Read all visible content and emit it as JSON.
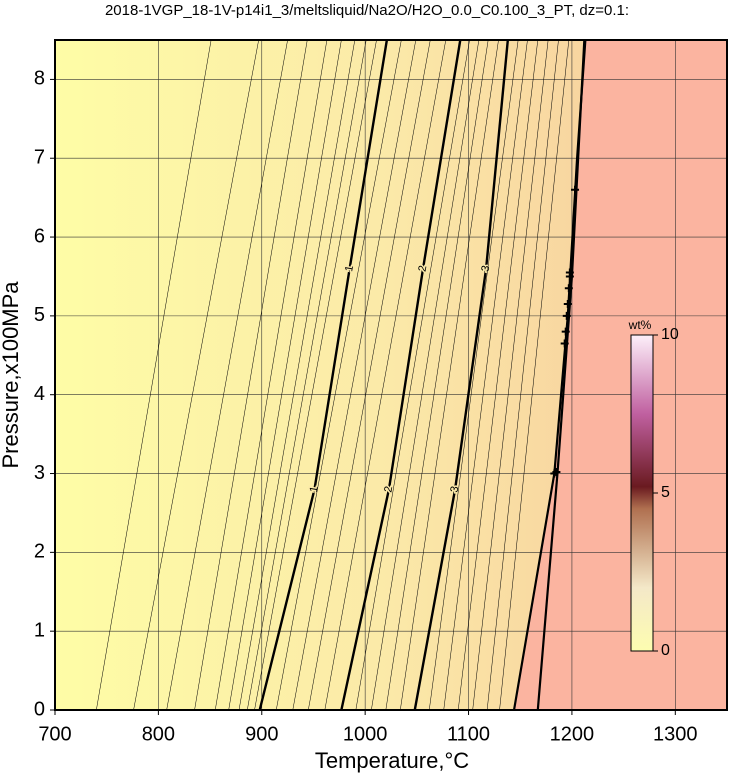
{
  "chart_data": {
    "type": "contour",
    "title": "2018-1VGP_18-1V-p14i1_3/meltsliquid/Na2O/H2O_0.0_C0.100_3_PT, dz=0.1:",
    "x_label": "Temperature,°C",
    "y_label": "Pressure,x100MPa",
    "xlim": [
      700,
      1350
    ],
    "ylim": [
      0,
      8.5
    ],
    "xticks": [
      700,
      800,
      900,
      1000,
      1100,
      1200,
      1300
    ],
    "yticks": [
      0,
      1,
      2,
      3,
      4,
      5,
      6,
      7,
      8
    ],
    "grid": true,
    "contours": [
      {
        "level": 0.1,
        "x": [
          740,
          851
        ],
        "y": [
          0,
          8.5
        ]
      },
      {
        "level": 0.2,
        "x": [
          776,
          897
        ],
        "y": [
          0,
          8.5
        ]
      },
      {
        "level": 0.3,
        "x": [
          808,
          925
        ],
        "y": [
          0,
          8.5
        ]
      },
      {
        "level": 0.4,
        "x": [
          835,
          944
        ],
        "y": [
          0,
          8.5
        ]
      },
      {
        "level": 0.5,
        "x": [
          855,
          963
        ],
        "y": [
          0,
          8.5
        ]
      },
      {
        "level": 0.6,
        "x": [
          868,
          977
        ],
        "y": [
          0,
          8.5
        ]
      },
      {
        "level": 0.7,
        "x": [
          878,
          990
        ],
        "y": [
          0,
          8.5
        ]
      },
      {
        "level": 0.8,
        "x": [
          886,
          1001
        ],
        "y": [
          0,
          8.5
        ]
      },
      {
        "level": 0.9,
        "x": [
          893,
          1011
        ],
        "y": [
          0,
          8.5
        ]
      },
      {
        "level": 1,
        "x": [
          898,
          951,
          985,
          1021
        ],
        "y": [
          0,
          2.8,
          5.6,
          8.5
        ],
        "major": true
      },
      {
        "level": 1.2,
        "x": [
          914,
          1035
        ],
        "y": [
          0,
          8.5
        ]
      },
      {
        "level": 1.4,
        "x": [
          930,
          1049
        ],
        "y": [
          0,
          8.5
        ]
      },
      {
        "level": 1.6,
        "x": [
          945,
          1063
        ],
        "y": [
          0,
          8.5
        ]
      },
      {
        "level": 1.8,
        "x": [
          961,
          1078
        ],
        "y": [
          0,
          8.5
        ]
      },
      {
        "level": 2,
        "x": [
          977,
          1023,
          1056,
          1092
        ],
        "y": [
          0,
          2.8,
          5.6,
          8.5
        ],
        "major": true
      },
      {
        "level": 2.2,
        "x": [
          991,
          1101
        ],
        "y": [
          0,
          8.5
        ]
      },
      {
        "level": 2.4,
        "x": [
          1006,
          1110
        ],
        "y": [
          0,
          8.5
        ]
      },
      {
        "level": 2.6,
        "x": [
          1020,
          1119
        ],
        "y": [
          0,
          8.5
        ]
      },
      {
        "level": 2.8,
        "x": [
          1034,
          1129
        ],
        "y": [
          0,
          8.5
        ]
      },
      {
        "level": 3,
        "x": [
          1048,
          1087,
          1117,
          1138
        ],
        "y": [
          0,
          2.8,
          5.6,
          8.5
        ],
        "major": true
      },
      {
        "level": 3.2,
        "x": [
          1062,
          1148
        ],
        "y": [
          0,
          8.5
        ]
      },
      {
        "level": 3.4,
        "x": [
          1076,
          1157
        ],
        "y": [
          0,
          8.5
        ]
      },
      {
        "level": 3.6,
        "x": [
          1090,
          1167
        ],
        "y": [
          0,
          8.5
        ]
      },
      {
        "level": 3.8,
        "x": [
          1104,
          1177
        ],
        "y": [
          0,
          8.5
        ]
      },
      {
        "level": 4.0,
        "x": [
          1118,
          1187
        ],
        "y": [
          0,
          8.5
        ]
      },
      {
        "level": 4.2,
        "x": [
          1130,
          1197
        ],
        "y": [
          0,
          8.5
        ]
      }
    ],
    "boundaries": [
      {
        "x": [
          1144,
          1183,
          1196,
          1205,
          1213
        ],
        "y": [
          0,
          3,
          5,
          7,
          8.5
        ]
      },
      {
        "x": [
          1167,
          1186,
          1200,
          1212
        ],
        "y": [
          0,
          3,
          5.5,
          8.5
        ]
      }
    ],
    "points": {
      "x": [
        1183,
        1185,
        1193,
        1194,
        1195,
        1196,
        1197,
        1198,
        1198,
        1203
      ],
      "y": [
        3.0,
        3.02,
        4.65,
        4.8,
        5.0,
        5.15,
        5.35,
        5.5,
        5.55,
        6.6
      ]
    },
    "colorbar": {
      "label": "wt%",
      "lim": [
        0,
        10
      ],
      "ticks": [
        0,
        5,
        10
      ]
    }
  }
}
